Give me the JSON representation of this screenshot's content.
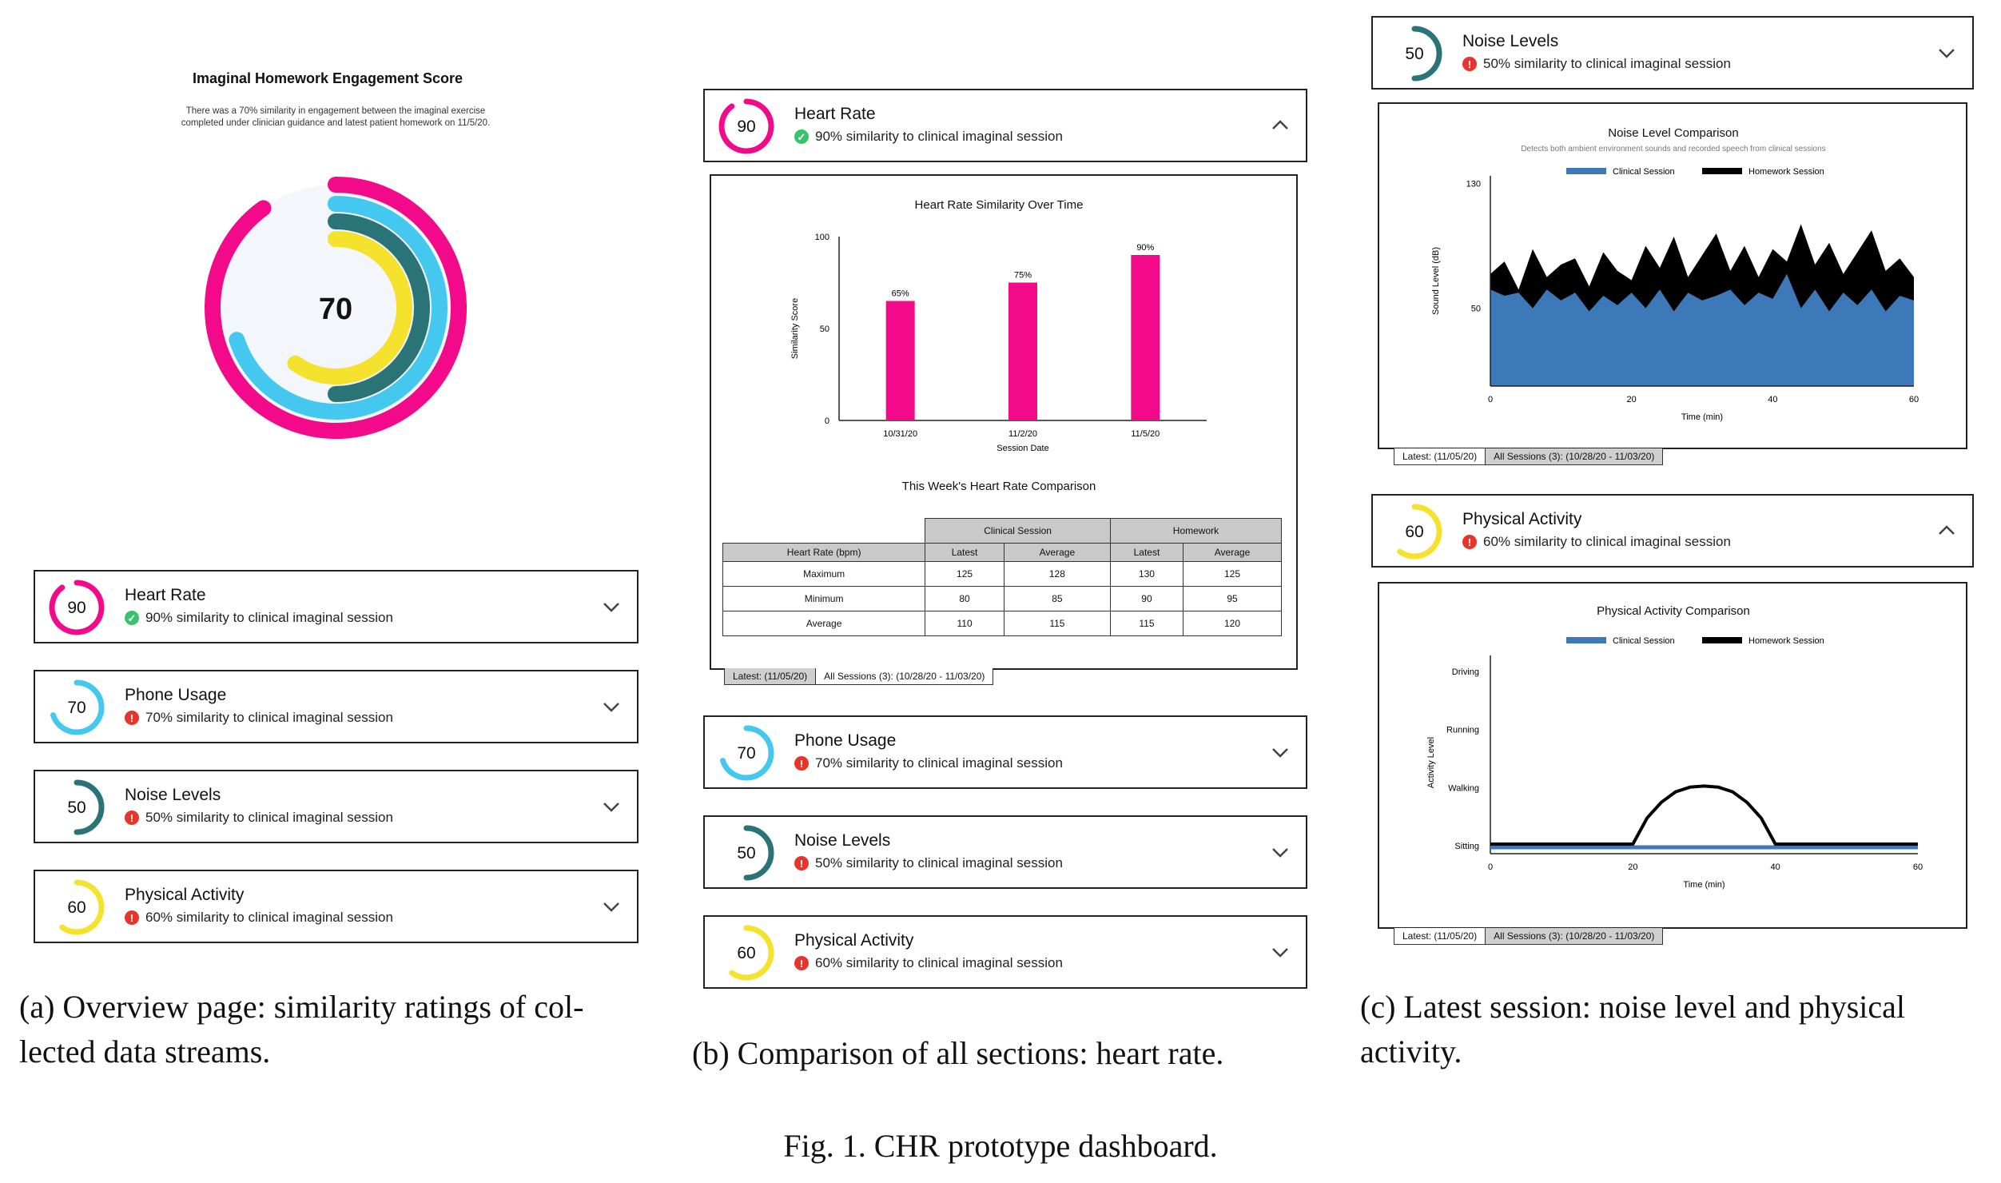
{
  "overview": {
    "title": "Imaginal Homework Engagement Score",
    "description": "There was a 70% similarity in engagement between the imaginal exercise completed under clinician guidance and latest patient homework on 11/5/20.",
    "score": "70"
  },
  "metrics": [
    {
      "key": "heart",
      "name": "Heart Rate",
      "score": "90",
      "status": "ok",
      "similarity": "90% similarity to clinical imaginal session",
      "color": "#f20a8a",
      "fraction": 0.9
    },
    {
      "key": "phone",
      "name": "Phone Usage",
      "score": "70",
      "status": "bad",
      "similarity": "70% similarity to clinical imaginal session",
      "color": "#45c8f0",
      "fraction": 0.7
    },
    {
      "key": "noise",
      "name": "Noise Levels",
      "score": "50",
      "status": "bad",
      "similarity": "50% similarity to clinical imaginal session",
      "color": "#2a7478",
      "fraction": 0.5
    },
    {
      "key": "activity",
      "name": "Physical Activity",
      "score": "60",
      "status": "bad",
      "similarity": "60% similarity to clinical imaginal session",
      "color": "#f5e22c",
      "fraction": 0.6
    }
  ],
  "heart_panel": {
    "chart_title": "Heart Rate Similarity Over Time",
    "table_title": "This Week's Heart Rate Comparison",
    "table": {
      "group_headers": [
        "Clinical Session",
        "Homework"
      ],
      "sub_headers": [
        "Heart  Rate (bpm)",
        "Latest",
        "Average",
        "Latest",
        "Average"
      ],
      "rows": [
        [
          "Maximum",
          "125",
          "128",
          "130",
          "125"
        ],
        [
          "Minimum",
          "80",
          "85",
          "90",
          "95"
        ],
        [
          "Average",
          "110",
          "115",
          "115",
          "120"
        ]
      ]
    }
  },
  "tabs": {
    "latest": "Latest: (11/05/20)",
    "all": "All Sessions (3): (10/28/20 - 11/03/20)"
  },
  "chart_data": [
    {
      "type": "bar",
      "title": "Heart Rate Similarity Over Time",
      "xlabel": "Session Date",
      "ylabel": "Similarity Score",
      "categories": [
        "10/31/20",
        "11/2/20",
        "11/5/20"
      ],
      "values": [
        65,
        75,
        90
      ],
      "data_labels": [
        "65%",
        "75%",
        "90%"
      ],
      "yticks": [
        "0",
        "50",
        "100"
      ],
      "ylim": [
        0,
        100
      ],
      "color": "#f20a8a"
    },
    {
      "type": "area",
      "title": "Noise Level Comparison",
      "subtitle": "Detects both ambient environment sounds and recorded speech from clinical sessions",
      "xlabel": "Time (min)",
      "ylabel": "Sound Level (dB)",
      "xticks": [
        "0",
        "20",
        "40",
        "60"
      ],
      "yticks": [
        "50",
        "130"
      ],
      "xlim": [
        0,
        60
      ],
      "ylim": [
        0,
        135
      ],
      "series": [
        {
          "name": "Clinical Session",
          "color": "#3d78b8",
          "x": [
            0,
            2,
            4,
            6,
            8,
            10,
            12,
            14,
            16,
            18,
            20,
            22,
            24,
            26,
            28,
            30,
            32,
            34,
            36,
            38,
            40,
            42,
            44,
            46,
            48,
            50,
            52,
            54,
            56,
            58,
            60
          ],
          "values": [
            62,
            58,
            60,
            50,
            62,
            55,
            60,
            48,
            58,
            52,
            60,
            50,
            62,
            48,
            60,
            55,
            58,
            62,
            52,
            60,
            56,
            72,
            50,
            62,
            48,
            60,
            52,
            62,
            48,
            58,
            55
          ]
        },
        {
          "name": "Homework Session",
          "color": "#000000",
          "x": [
            0,
            2,
            4,
            6,
            8,
            10,
            12,
            14,
            16,
            18,
            20,
            22,
            24,
            26,
            28,
            30,
            32,
            34,
            36,
            38,
            40,
            42,
            44,
            46,
            48,
            50,
            52,
            54,
            56,
            58,
            60
          ],
          "values": [
            72,
            80,
            62,
            88,
            70,
            78,
            82,
            64,
            86,
            74,
            68,
            90,
            76,
            96,
            70,
            84,
            98,
            74,
            90,
            70,
            88,
            80,
            104,
            78,
            92,
            72,
            86,
            100,
            74,
            82,
            70
          ]
        }
      ]
    },
    {
      "type": "line",
      "title": "Physical Activity Comparison",
      "xlabel": "Time (min)",
      "ylabel": "Activity Level",
      "xticks": [
        "0",
        "20",
        "40",
        "60"
      ],
      "categories_y": [
        "Sitting",
        "Walking",
        "Running",
        "Driving"
      ],
      "xlim": [
        0,
        60
      ],
      "series": [
        {
          "name": "Clinical Session",
          "color": "#3d78b8",
          "x": [
            0,
            60
          ],
          "values": [
            0,
            0
          ]
        },
        {
          "name": "Homework Session",
          "color": "#000000",
          "x": [
            0,
            20,
            22,
            24,
            26,
            28,
            30,
            32,
            34,
            36,
            38,
            40,
            60
          ],
          "values": [
            0,
            0,
            0.45,
            0.72,
            0.9,
            0.98,
            1.0,
            0.98,
            0.9,
            0.72,
            0.45,
            0,
            0
          ]
        }
      ]
    }
  ],
  "captions": {
    "a": "(a) Overview page: similarity ratings of col-\nlected data streams.",
    "b": "(b) Comparison of all sections: heart rate.",
    "c": "(c) Latest session: noise level and physical\nactivity.",
    "figure": "Fig. 1.  CHR prototype dashboard."
  }
}
